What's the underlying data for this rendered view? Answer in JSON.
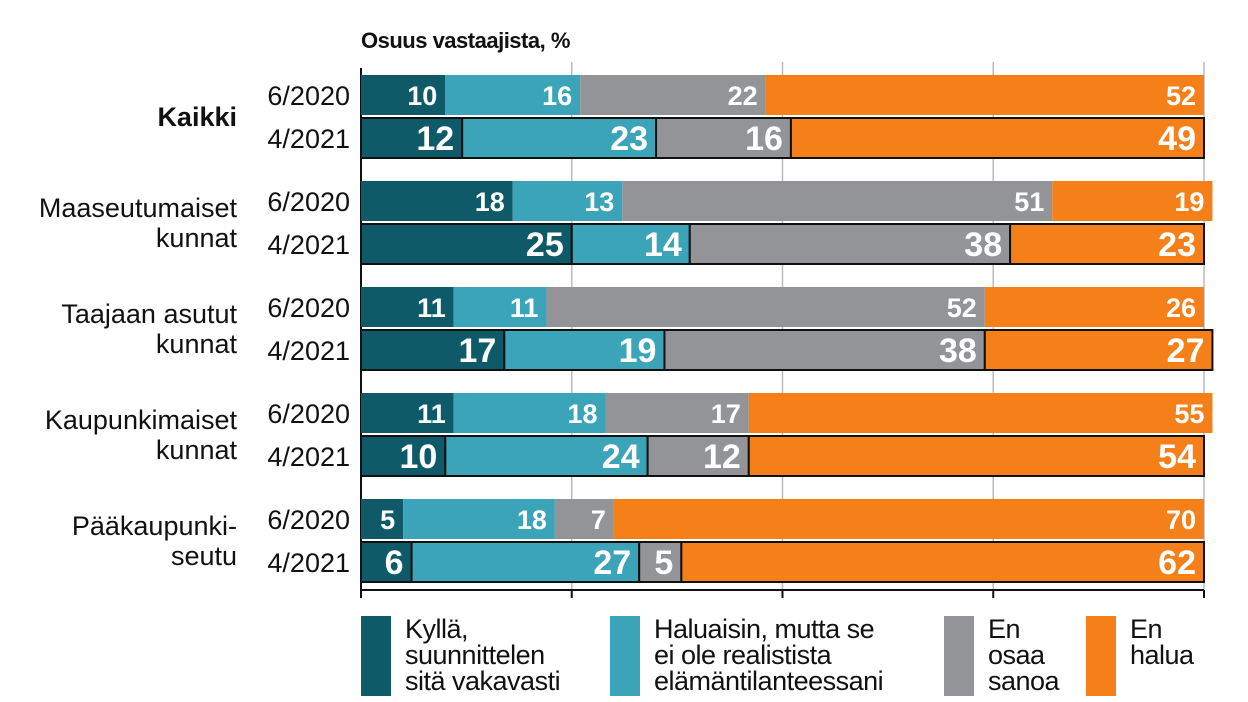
{
  "chart_data": {
    "type": "bar",
    "stacked": true,
    "orientation": "horizontal",
    "title": "",
    "subtitle": "Osuus vastaajista, %",
    "xlim": [
      0,
      100
    ],
    "grid": true,
    "legend_position": "bottom",
    "groups": [
      {
        "label": "Kaikki",
        "bold": true,
        "rows": [
          {
            "period": "6/2020",
            "values": [
              10,
              16,
              22,
              52
            ]
          },
          {
            "period": "4/2021",
            "values": [
              12,
              23,
              16,
              49
            ]
          }
        ]
      },
      {
        "label": "Maaseutumaiset kunnat",
        "rows": [
          {
            "period": "6/2020",
            "values": [
              18,
              13,
              51,
              19
            ]
          },
          {
            "period": "4/2021",
            "values": [
              25,
              14,
              38,
              23
            ]
          }
        ]
      },
      {
        "label": "Taajaan asutut kunnat",
        "rows": [
          {
            "period": "6/2020",
            "values": [
              11,
              11,
              52,
              26
            ]
          },
          {
            "period": "4/2021",
            "values": [
              17,
              19,
              38,
              27
            ]
          }
        ]
      },
      {
        "label": "Kaupunkimaiset kunnat",
        "rows": [
          {
            "period": "6/2020",
            "values": [
              11,
              18,
              17,
              55
            ]
          },
          {
            "period": "4/2021",
            "values": [
              10,
              24,
              12,
              54
            ]
          }
        ]
      },
      {
        "label": "Pääkaupunki-seutu",
        "rows": [
          {
            "period": "6/2020",
            "values": [
              5,
              18,
              7,
              70
            ]
          },
          {
            "period": "4/2021",
            "values": [
              6,
              27,
              5,
              62
            ]
          }
        ]
      }
    ],
    "series": [
      {
        "name": "Kyllä, suunnittelen sitä vakavasti",
        "color": "#0e5a69"
      },
      {
        "name": "Haluaisin, mutta se ei ole realistista elämäntilanteessani",
        "color": "#3ba4b9"
      },
      {
        "name": "En osaa sanoa",
        "color": "#929497"
      },
      {
        "name": "En halua",
        "color": "#f5801a"
      }
    ]
  },
  "legend_text": [
    "Kyllä,\nsuunnittelen\nsitä vakavasti",
    "Haluaisin, mutta se\nei ole realistista\nelämäntilanteessani",
    "En\nosaa\nsanoa",
    "En\nhalua"
  ],
  "group_label_lines": [
    [
      "Kaikki"
    ],
    [
      "Maaseutumaiset",
      "kunnat"
    ],
    [
      "Taajaan asutut",
      "kunnat"
    ],
    [
      "Kaupunkimaiset",
      "kunnat"
    ],
    [
      "Pääkaupunki-",
      "seutu"
    ]
  ]
}
